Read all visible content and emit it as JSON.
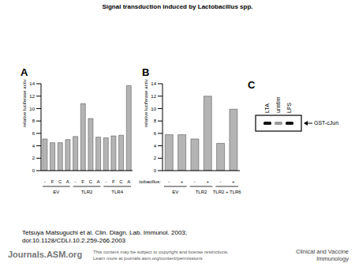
{
  "title": "Signal transduction induced by Lactobacillus spp.",
  "chart_data": [
    {
      "type": "bar",
      "panel": "A",
      "y_label": "relative luciferase activity",
      "ylim": [
        0,
        14
      ],
      "yticks": [
        0,
        2,
        4,
        6,
        8,
        10,
        12,
        14
      ],
      "color": "#b4b4b4",
      "groups": [
        {
          "name": "EV",
          "categories": [
            "-",
            "F",
            "C",
            "A"
          ],
          "values": [
            5.1,
            4.5,
            4.5,
            5.0
          ]
        },
        {
          "name": "TLR2",
          "categories": [
            "-",
            "F",
            "C",
            "A"
          ],
          "values": [
            5.5,
            10.8,
            8.4,
            5.4
          ]
        },
        {
          "name": "TLR4",
          "categories": [
            "-",
            "F",
            "C",
            "A"
          ],
          "values": [
            5.3,
            5.6,
            5.7,
            13.7
          ]
        }
      ]
    },
    {
      "type": "bar",
      "panel": "B",
      "y_label": "relative luciferase activity",
      "x_label": "Lactobacillus:",
      "ylim": [
        0,
        14
      ],
      "yticks": [
        0,
        2,
        4,
        6,
        8,
        10,
        12,
        14
      ],
      "color": "#b4b4b4",
      "groups": [
        {
          "name": "EV",
          "categories": [
            "-",
            "+"
          ],
          "values": [
            5.8,
            5.8
          ]
        },
        {
          "name": "TLR2",
          "categories": [
            "-",
            "+"
          ],
          "values": [
            5.1,
            12.0
          ]
        },
        {
          "name": "TLR2 + TLR6",
          "categories": [
            "-",
            "+"
          ],
          "values": [
            4.4,
            9.9
          ]
        }
      ]
    }
  ],
  "blot": {
    "panel": "C",
    "lanes": [
      "LTA",
      "unstim",
      "LPS"
    ],
    "band_label": "GST-cJun"
  },
  "citation": [
    "Tetsuya Matsuguchi et al. Clin. Diagn. Lab. Immunol. 2003;",
    "doi:10.1128/CDLI.10.2.259-266.2003"
  ],
  "footer": {
    "site": "Journals.ASM.org",
    "notice": [
      "This content may be subject to copyright and license restrictions.",
      "Learn more at journals.asm.org/content/permissions"
    ],
    "journal": [
      "Clinical and Vaccine",
      "Immunology"
    ]
  }
}
